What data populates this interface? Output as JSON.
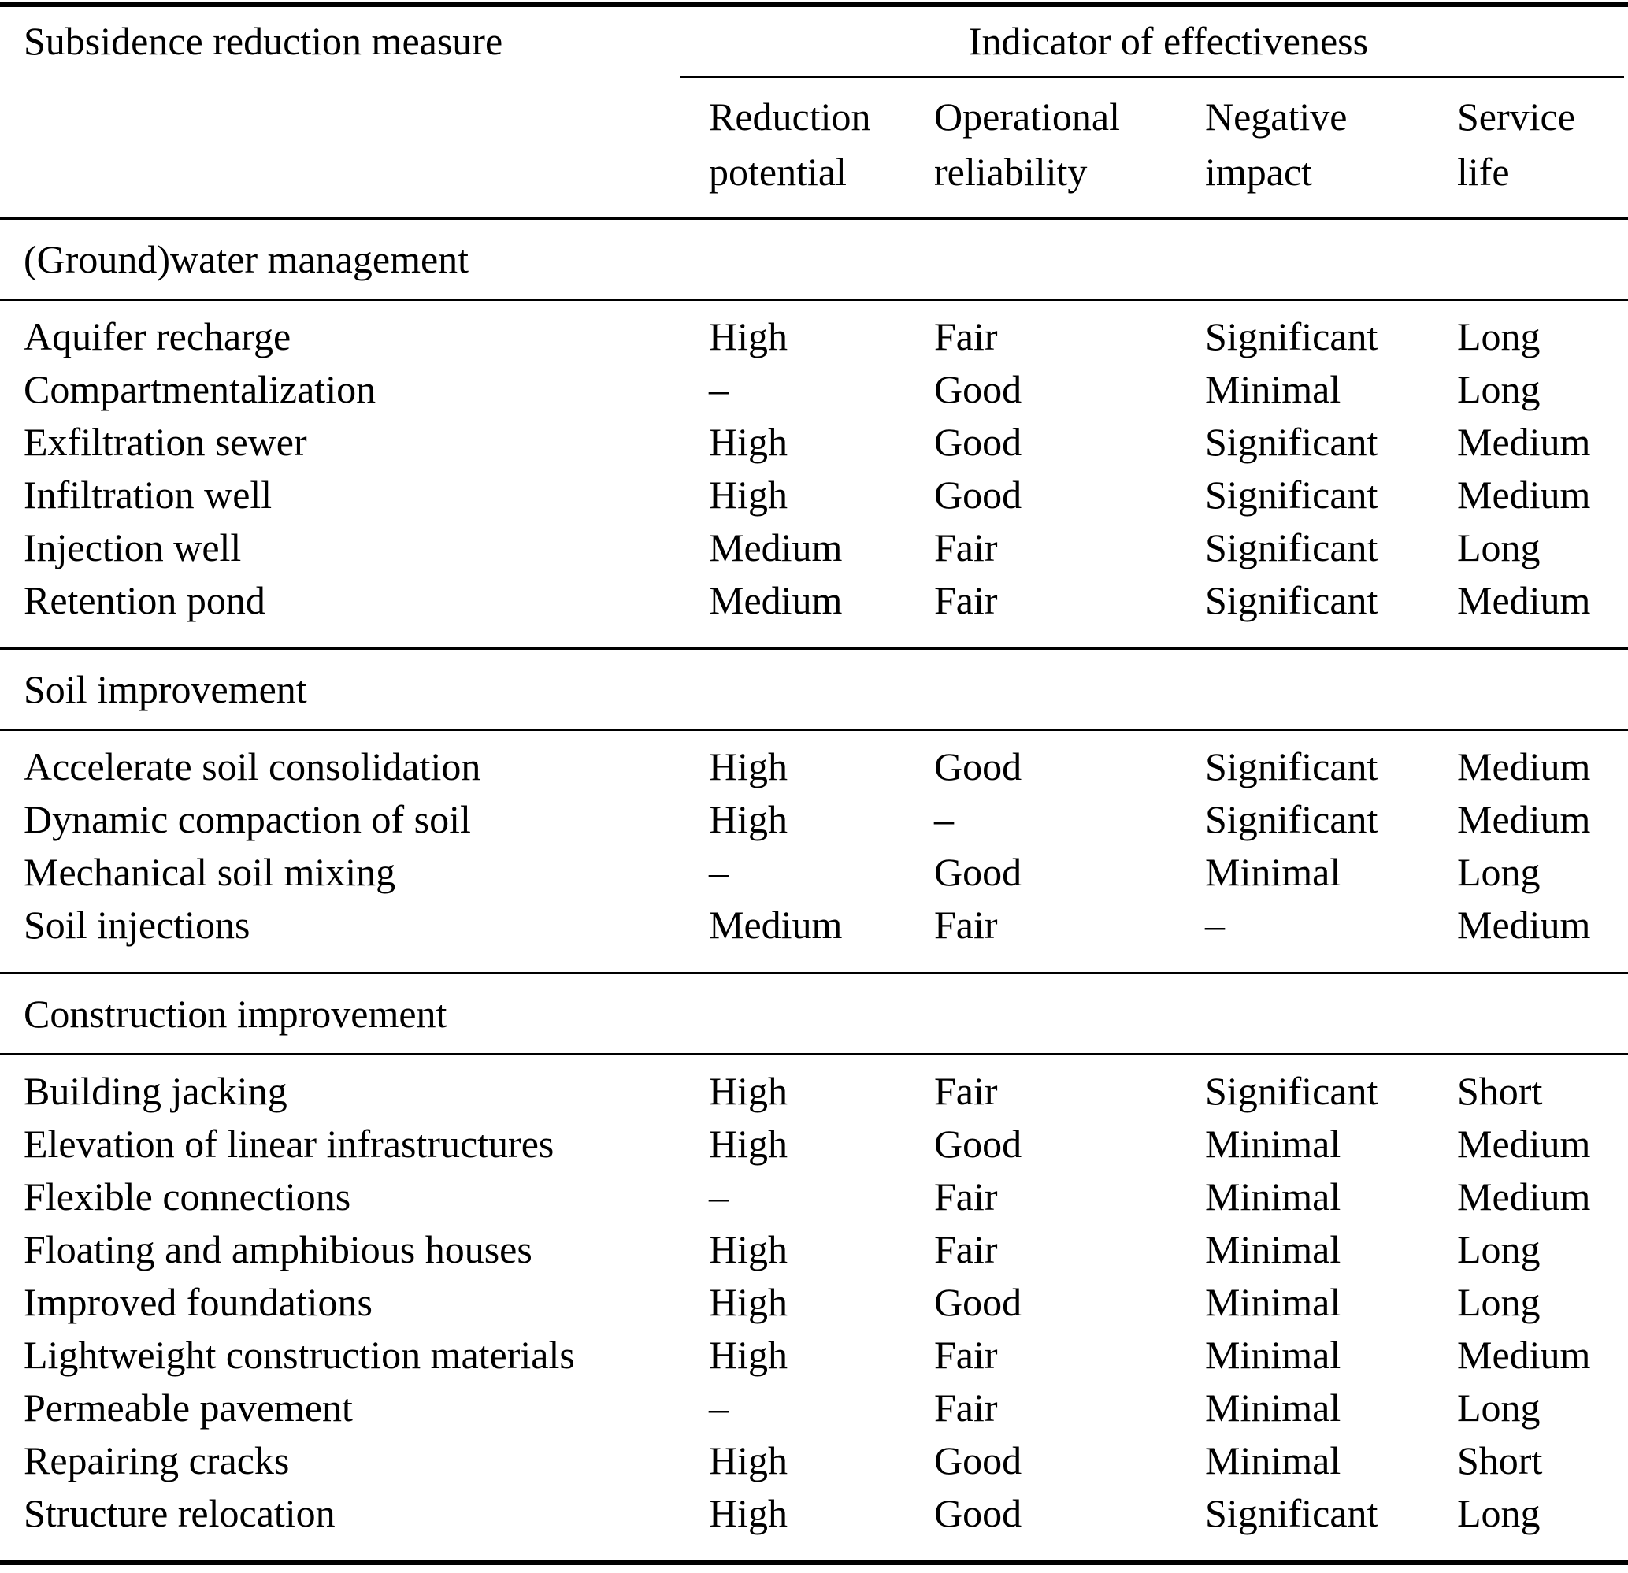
{
  "table": {
    "col1_header": "Subsidence reduction measure",
    "span_header": "Indicator of effectiveness",
    "columns": [
      {
        "line1": "Reduction",
        "line2": "potential"
      },
      {
        "line1": "Operational",
        "line2": "reliability"
      },
      {
        "line1": "Negative",
        "line2": "impact"
      },
      {
        "line1": "Service",
        "line2": "life"
      }
    ],
    "sections": [
      {
        "title": "(Ground)water management",
        "rows": [
          {
            "measure": "Aquifer recharge",
            "values": [
              "High",
              "Fair",
              "Significant",
              "Long"
            ]
          },
          {
            "measure": "Compartmentalization",
            "values": [
              "–",
              "Good",
              "Minimal",
              "Long"
            ]
          },
          {
            "measure": "Exfiltration sewer",
            "values": [
              "High",
              "Good",
              "Significant",
              "Medium"
            ]
          },
          {
            "measure": "Infiltration well",
            "values": [
              "High",
              "Good",
              "Significant",
              "Medium"
            ]
          },
          {
            "measure": "Injection well",
            "values": [
              "Medium",
              "Fair",
              "Significant",
              "Long"
            ]
          },
          {
            "measure": "Retention pond",
            "values": [
              "Medium",
              "Fair",
              "Significant",
              "Medium"
            ]
          }
        ]
      },
      {
        "title": "Soil improvement",
        "rows": [
          {
            "measure": "Accelerate soil consolidation",
            "values": [
              "High",
              "Good",
              "Significant",
              "Medium"
            ]
          },
          {
            "measure": "Dynamic compaction of soil",
            "values": [
              "High",
              "–",
              "Significant",
              "Medium"
            ]
          },
          {
            "measure": "Mechanical soil mixing",
            "values": [
              "–",
              "Good",
              "Minimal",
              "Long"
            ]
          },
          {
            "measure": "Soil injections",
            "values": [
              "Medium",
              "Fair",
              "–",
              "Medium"
            ]
          }
        ]
      },
      {
        "title": "Construction improvement",
        "rows": [
          {
            "measure": "Building jacking",
            "values": [
              "High",
              "Fair",
              "Significant",
              "Short"
            ]
          },
          {
            "measure": "Elevation of linear infrastructures",
            "values": [
              "High",
              "Good",
              "Minimal",
              "Medium"
            ]
          },
          {
            "measure": "Flexible connections",
            "values": [
              "–",
              "Fair",
              "Minimal",
              "Medium"
            ]
          },
          {
            "measure": "Floating and amphibious houses",
            "values": [
              "High",
              "Fair",
              "Minimal",
              "Long"
            ]
          },
          {
            "measure": "Improved foundations",
            "values": [
              "High",
              "Good",
              "Minimal",
              "Long"
            ]
          },
          {
            "measure": "Lightweight construction materials",
            "values": [
              "High",
              "Fair",
              "Minimal",
              "Medium"
            ]
          },
          {
            "measure": "Permeable pavement",
            "values": [
              "–",
              "Fair",
              "Minimal",
              "Long"
            ]
          },
          {
            "measure": "Repairing cracks",
            "values": [
              "High",
              "Good",
              "Minimal",
              "Short"
            ]
          },
          {
            "measure": "Structure relocation",
            "values": [
              "High",
              "Good",
              "Significant",
              "Long"
            ]
          }
        ]
      }
    ]
  },
  "colors": {
    "text": "#000000",
    "background": "#ffffff",
    "rule": "#000000"
  }
}
